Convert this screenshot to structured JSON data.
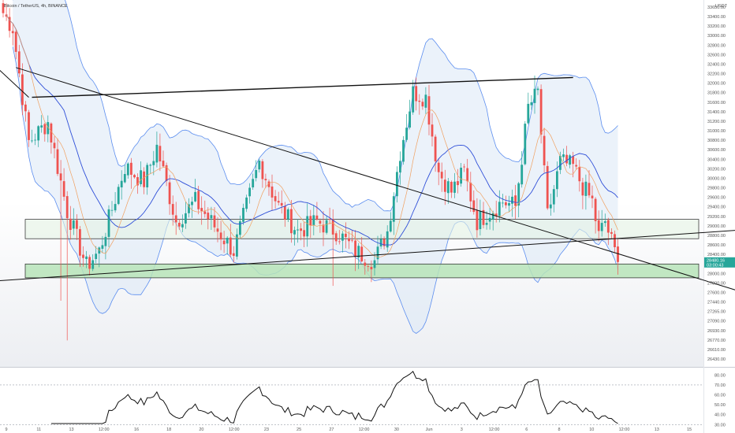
{
  "header": {
    "title": "Bitcoin / TetherUS, 4h, BINANCE",
    "currency": "USDT"
  },
  "price_tag": {
    "value": "28480.16",
    "countdown": "03:00:43"
  },
  "colors": {
    "up": "#26a69a",
    "down": "#ef5350",
    "band": "#5b8def",
    "band_fill": "#dbe7f5",
    "basis": "#2f4fd8",
    "ma": "#f0a060",
    "zone": "#b7e4b9",
    "tag": "#26a69a"
  },
  "chart_data": [
    {
      "type": "candlestick",
      "title": "",
      "ylim": [
        26430,
        33650
      ],
      "y_ticks": [
        "33650.00",
        "33400.00",
        "33200.00",
        "33000.00",
        "32800.00",
        "32600.00",
        "32400.00",
        "32200.00",
        "32000.00",
        "31800.00",
        "31600.00",
        "31400.00",
        "31200.00",
        "31000.00",
        "30800.00",
        "30600.00",
        "30400.00",
        "30200.00",
        "30000.00",
        "29800.00",
        "29600.00",
        "29400.00",
        "29200.00",
        "29000.00",
        "28800.00",
        "28600.00",
        "28400.00",
        "28200.00",
        "28000.00",
        "27800.00",
        "27600.00",
        "27440.00",
        "27265.00",
        "27090.00",
        "26930.00",
        "26770.00",
        "26610.00",
        "26430.00"
      ],
      "x_ticks": [
        "9",
        "11",
        "13",
        "12:00",
        "16",
        "18",
        "20",
        "12:00",
        "23",
        "25",
        "27",
        "12:00",
        "30",
        "Jun",
        "3",
        "12:00",
        "6",
        "8",
        "10",
        "12:00",
        "13",
        "15"
      ],
      "anchors": [
        {
          "i": 0,
          "p": 33500
        },
        {
          "i": 3,
          "p": 33200
        },
        {
          "i": 8,
          "p": 30900
        },
        {
          "i": 14,
          "p": 31300
        },
        {
          "i": 20,
          "p": 29500
        },
        {
          "i": 26,
          "p": 28400
        },
        {
          "i": 30,
          "p": 28700
        },
        {
          "i": 38,
          "p": 30400
        },
        {
          "i": 44,
          "p": 30100
        },
        {
          "i": 48,
          "p": 30800
        },
        {
          "i": 54,
          "p": 29300
        },
        {
          "i": 60,
          "p": 29700
        },
        {
          "i": 66,
          "p": 29200
        },
        {
          "i": 72,
          "p": 28700
        },
        {
          "i": 80,
          "p": 30500
        },
        {
          "i": 86,
          "p": 29600
        },
        {
          "i": 92,
          "p": 29100
        },
        {
          "i": 98,
          "p": 29300
        },
        {
          "i": 104,
          "p": 29100
        },
        {
          "i": 110,
          "p": 28700
        },
        {
          "i": 116,
          "p": 28500
        },
        {
          "i": 120,
          "p": 29100
        },
        {
          "i": 124,
          "p": 30700
        },
        {
          "i": 128,
          "p": 31900
        },
        {
          "i": 132,
          "p": 31800
        },
        {
          "i": 136,
          "p": 30300
        },
        {
          "i": 140,
          "p": 29900
        },
        {
          "i": 144,
          "p": 30300
        },
        {
          "i": 148,
          "p": 29300
        },
        {
          "i": 152,
          "p": 29500
        },
        {
          "i": 156,
          "p": 29700
        },
        {
          "i": 160,
          "p": 29600
        },
        {
          "i": 164,
          "p": 31600
        },
        {
          "i": 167,
          "p": 31900
        },
        {
          "i": 170,
          "p": 29400
        },
        {
          "i": 174,
          "p": 30500
        },
        {
          "i": 178,
          "p": 30400
        },
        {
          "i": 181,
          "p": 30000
        },
        {
          "i": 184,
          "p": 29700
        },
        {
          "i": 186,
          "p": 29000
        },
        {
          "i": 188,
          "p": 29300
        },
        {
          "i": 192,
          "p": 28480
        }
      ],
      "seed": 7,
      "zones": [
        {
          "from": 28950,
          "to": 29340,
          "name": "upper-zone"
        },
        {
          "from": 28160,
          "to": 28440,
          "name": "lower-zone"
        }
      ],
      "trendlines": [
        {
          "p1": [
            9,
            31800
          ],
          "p2": [
            178,
            32200
          ],
          "name": "upper-channel-line"
        },
        {
          "p1": [
            8,
            31800
          ],
          "p2": [
            -2,
            32400
          ],
          "name": "upper-channel-stub"
        },
        {
          "p1": [
            4,
            32400
          ],
          "p2": [
            237,
            27750
          ],
          "name": "descending-trendline"
        },
        {
          "p1": [
            -2,
            28100
          ],
          "p2": [
            236,
            29150
          ],
          "name": "ascending-trendline"
        }
      ]
    },
    {
      "type": "line",
      "title": "",
      "ylim": [
        31,
        85
      ],
      "y_ticks": [
        "80.00",
        "70.00",
        "60.00",
        "50.00",
        "40.00",
        "30.00"
      ],
      "reference_lines": [
        70,
        30
      ]
    }
  ]
}
